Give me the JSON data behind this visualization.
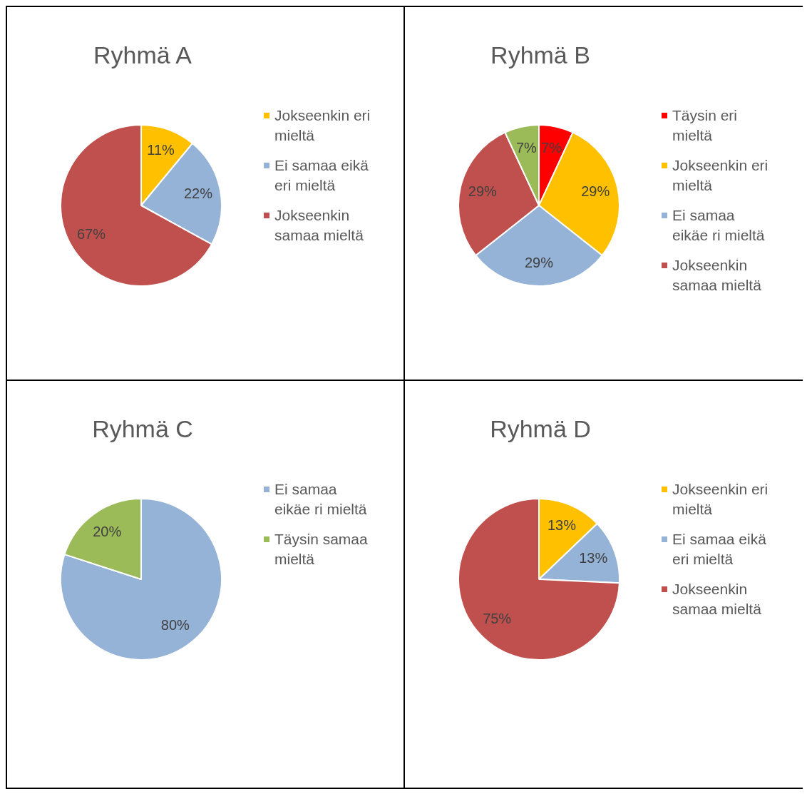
{
  "chart_data": [
    {
      "type": "pie",
      "title": "Ryhmä A",
      "categories": [
        "Jokseenkin eri mieltä",
        "Ei samaa eikä eri mieltä",
        "Jokseenkin samaa mieltä"
      ],
      "values": [
        11,
        22,
        67
      ],
      "colors": [
        "#ffc000",
        "#95b3d7",
        "#c0504d"
      ],
      "value_labels": [
        "11%",
        "22%",
        "67%"
      ],
      "legend": "right"
    },
    {
      "type": "pie",
      "title": "Ryhmä B",
      "categories": [
        "Täysin eri mieltä",
        "Jokseenkin eri mieltä",
        "Ei samaa eikäe ri mieltä",
        "Jokseenkin samaa mieltä",
        null
      ],
      "values": [
        7,
        29,
        29,
        29,
        7
      ],
      "colors": [
        "#ff0000",
        "#ffc000",
        "#95b3d7",
        "#c0504d",
        "#9bbb59"
      ],
      "value_labels": [
        "7%",
        "29%",
        "29%",
        "29%",
        "7%"
      ],
      "legend": "right"
    },
    {
      "type": "pie",
      "title": "Ryhmä C",
      "categories": [
        "Ei samaa eikäe ri mieltä",
        "Täysin samaa mieltä"
      ],
      "values": [
        80,
        20
      ],
      "colors": [
        "#95b3d7",
        "#9bbb59"
      ],
      "value_labels": [
        "80%",
        "20%"
      ],
      "legend": "right"
    },
    {
      "type": "pie",
      "title": "Ryhmä D",
      "categories": [
        "Jokseenkin eri mieltä",
        "Ei samaa eikä eri mieltä",
        "Jokseenkin samaa mieltä"
      ],
      "values": [
        13,
        13,
        75
      ],
      "colors": [
        "#ffc000",
        "#95b3d7",
        "#c0504d"
      ],
      "value_labels": [
        "13%",
        "13%",
        "75%"
      ],
      "legend": "right"
    }
  ]
}
